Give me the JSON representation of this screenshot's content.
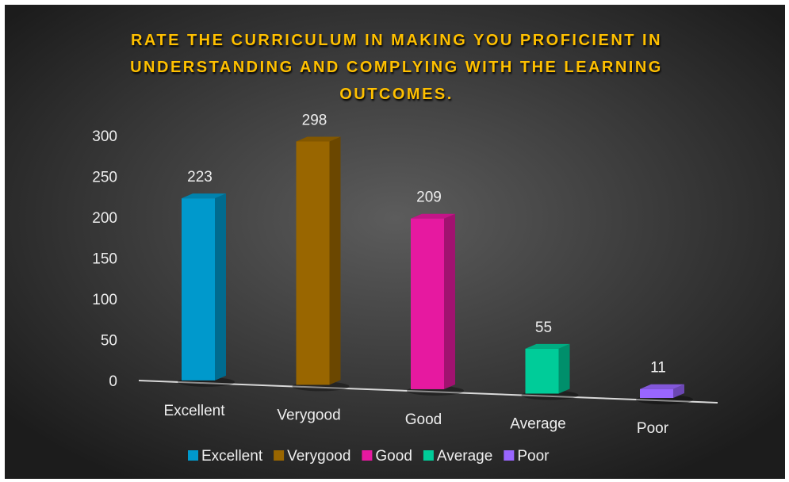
{
  "chart_data": {
    "type": "bar3d",
    "title": "RATE THE CURRICULUM IN MAKING YOU PROFICIENT IN UNDERSTANDING AND COMPLYING WITH THE LEARNING OUTCOMES.",
    "categories": [
      "Excellent",
      "Verygood",
      "Good",
      "Average",
      "Poor"
    ],
    "values": [
      223,
      298,
      209,
      55,
      11
    ],
    "colors": [
      "#0099cc",
      "#996600",
      "#e619a0",
      "#00cc99",
      "#9966ff"
    ],
    "ylim": [
      0,
      300
    ],
    "yticks": [
      0,
      50,
      100,
      150,
      200,
      250,
      300
    ],
    "legend": "bottom"
  }
}
